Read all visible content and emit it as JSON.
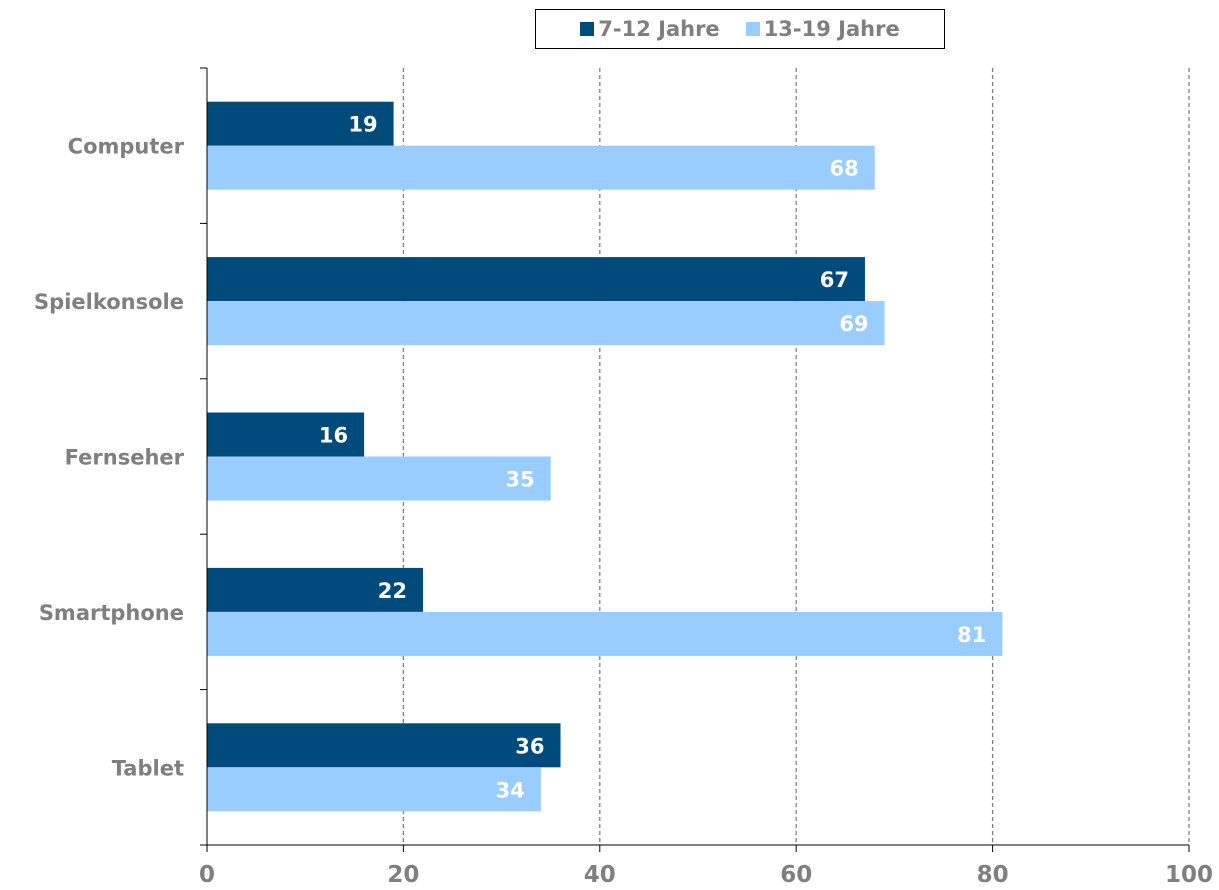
{
  "chart_data": {
    "type": "bar",
    "orientation": "horizontal",
    "categories": [
      "Computer",
      "Spielkonsole",
      "Fernseher",
      "Smartphone",
      "Tablet"
    ],
    "series": [
      {
        "name": "7-12 Jahre",
        "color": "#004a7c",
        "values": [
          19,
          67,
          16,
          22,
          36
        ]
      },
      {
        "name": "13-19 Jahre",
        "color": "#99ccff",
        "values": [
          68,
          69,
          35,
          81,
          34
        ]
      }
    ],
    "xlim": [
      0,
      100
    ],
    "xticks": [
      "0",
      "20",
      "40",
      "60",
      "80",
      "100"
    ],
    "grid": "vertical dashed",
    "legend_position": "top",
    "title": "",
    "xlabel": "",
    "ylabel": "",
    "colors": {
      "label_text": "#7f7f7f",
      "grid": "#808080",
      "data_label": "#ffffff"
    }
  }
}
